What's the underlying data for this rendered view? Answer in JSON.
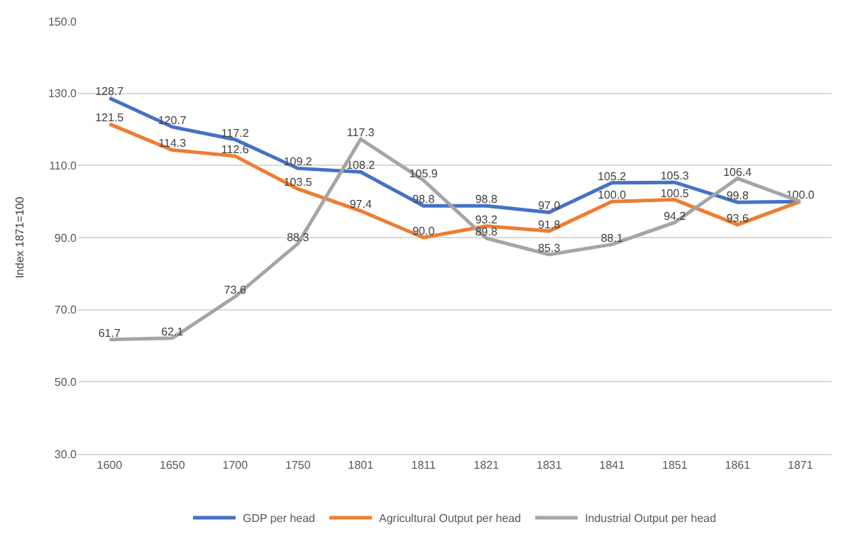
{
  "chart_data": {
    "type": "line",
    "ylabel": "Index 1871=100",
    "categories": [
      "1600",
      "1650",
      "1700",
      "1750",
      "1801",
      "1811",
      "1821",
      "1831",
      "1841",
      "1851",
      "1861",
      "1871"
    ],
    "series": [
      {
        "name": "GDP per head",
        "color": "#4472c4",
        "values": [
          128.7,
          120.7,
          117.2,
          109.2,
          108.2,
          98.8,
          98.8,
          97.0,
          105.2,
          105.3,
          99.8,
          100.0
        ],
        "value_labels": [
          "128.7",
          "120.7",
          "117.2",
          "109.2",
          "108.2",
          "98.8",
          "98.8",
          "97.0",
          "105.2",
          "105.3",
          "99.8",
          "100.0"
        ]
      },
      {
        "name": "Agricultural Output per head",
        "color": "#ed7d31",
        "values": [
          121.5,
          114.3,
          112.6,
          103.5,
          97.4,
          90.0,
          93.2,
          91.8,
          100.0,
          100.5,
          93.6,
          100.0
        ],
        "value_labels": [
          "121.5",
          "114.3",
          "112.6",
          "103.5",
          "97.4",
          "90.0",
          "93.2",
          "91.8",
          "100.0",
          "100.5",
          "93.6",
          null
        ]
      },
      {
        "name": "Industrial Output per head",
        "color": "#a5a5a5",
        "values": [
          61.7,
          62.1,
          73.6,
          88.3,
          117.3,
          105.9,
          89.8,
          85.3,
          88.1,
          94.2,
          106.4,
          100.0
        ],
        "value_labels": [
          "61.7",
          "62.1",
          "73.6",
          "88.3",
          "117.3",
          "105.9",
          "89.8",
          "85.3",
          "88.1",
          "94.2",
          "106.4",
          null
        ]
      }
    ],
    "ylim": [
      30,
      150
    ],
    "yticks": [
      {
        "value": 30,
        "label": "30.0"
      },
      {
        "value": 50,
        "label": "50.0"
      },
      {
        "value": 70,
        "label": "70.0"
      },
      {
        "value": 90,
        "label": "90.0"
      },
      {
        "value": 110,
        "label": "110.0"
      },
      {
        "value": 130,
        "label": "130.0"
      },
      {
        "value": 150,
        "label": "150.0"
      }
    ],
    "grid": "y",
    "legend": "bottom",
    "marker": "none",
    "line_style": "solid"
  }
}
